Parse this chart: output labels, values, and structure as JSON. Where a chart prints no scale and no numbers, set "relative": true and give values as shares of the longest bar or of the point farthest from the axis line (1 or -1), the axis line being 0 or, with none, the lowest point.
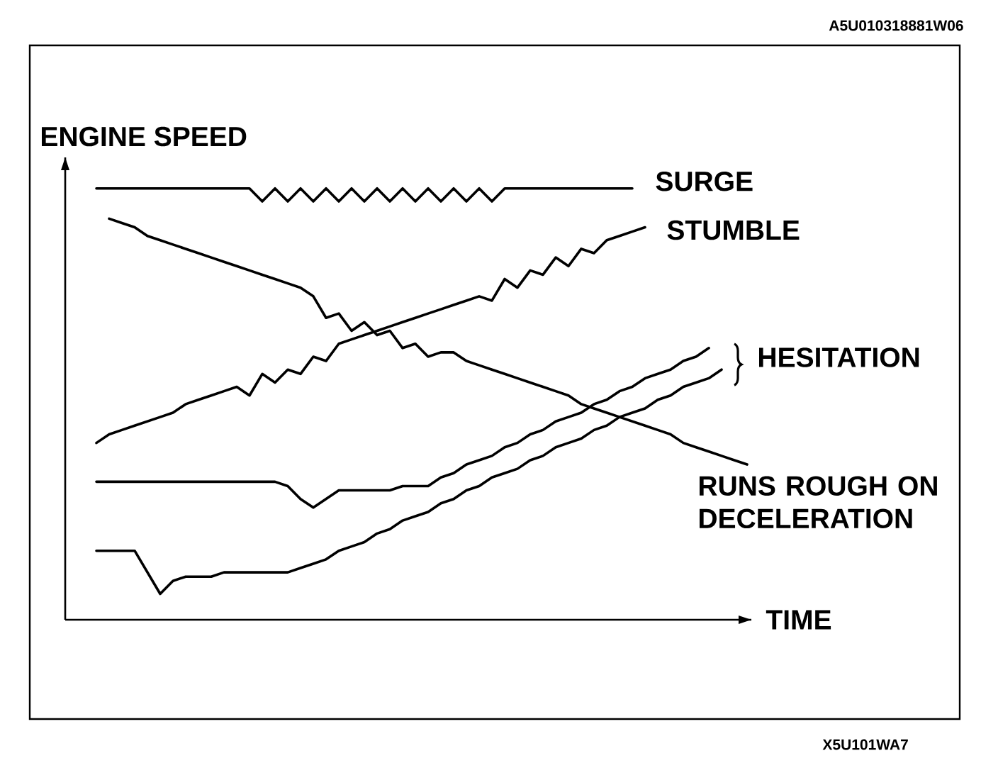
{
  "chart_data": {
    "type": "line",
    "relative": true,
    "xlabel": "TIME",
    "ylabel": "ENGINE SPEED",
    "categories": [
      null,
      null,
      null,
      null,
      null,
      null,
      null,
      null,
      null,
      null,
      null,
      null,
      null,
      null,
      null,
      null,
      null,
      null,
      null,
      null,
      null,
      null,
      null,
      null,
      null,
      null,
      null,
      null,
      null,
      null,
      null,
      null,
      null,
      null,
      null,
      null,
      null,
      null,
      null,
      null,
      null,
      null,
      null,
      null,
      null,
      null,
      null,
      null,
      null,
      null,
      null,
      null
    ],
    "series": [
      {
        "name": "SURGE",
        "color": "#000000",
        "values": [
          1,
          1,
          1,
          1,
          1,
          1,
          1,
          1,
          1,
          1,
          1,
          1,
          1,
          0.97,
          1,
          0.97,
          1,
          0.97,
          1,
          0.97,
          1,
          0.97,
          1,
          0.97,
          1,
          0.97,
          1,
          0.97,
          1,
          0.97,
          1,
          0.97,
          1,
          1,
          1,
          1,
          1,
          1,
          1,
          1,
          1,
          1,
          1,
          null,
          null,
          null,
          null,
          null,
          null,
          null,
          null,
          null
        ]
      },
      {
        "name": "STUMBLE",
        "color": "#000000",
        "values": [
          0.41,
          0.43,
          0.44,
          0.45,
          0.46,
          0.47,
          0.48,
          0.5,
          0.51,
          0.52,
          0.53,
          0.54,
          0.52,
          0.57,
          0.55,
          0.58,
          0.57,
          0.61,
          0.6,
          0.64,
          0.65,
          0.66,
          0.67,
          0.68,
          0.69,
          0.7,
          0.71,
          0.72,
          0.73,
          0.74,
          0.75,
          0.74,
          0.79,
          0.77,
          0.81,
          0.8,
          0.84,
          0.82,
          0.86,
          0.85,
          0.88,
          0.89,
          0.9,
          0.91,
          null,
          null,
          null,
          null,
          null,
          null,
          null,
          null
        ]
      },
      {
        "name": "HESITATION",
        "color": "#000000",
        "values": [
          0.32,
          0.32,
          0.32,
          0.32,
          0.32,
          0.32,
          0.32,
          0.32,
          0.32,
          0.32,
          0.32,
          0.32,
          0.32,
          0.32,
          0.32,
          0.31,
          0.28,
          0.26,
          0.28,
          0.3,
          0.3,
          0.3,
          0.3,
          0.3,
          0.31,
          0.31,
          0.31,
          0.33,
          0.34,
          0.36,
          0.37,
          0.38,
          0.4,
          0.41,
          0.43,
          0.44,
          0.46,
          0.47,
          0.48,
          0.5,
          0.51,
          0.53,
          0.54,
          0.56,
          0.57,
          0.58,
          0.6,
          0.61,
          0.63,
          null,
          null,
          null
        ]
      },
      {
        "color": "#000000",
        "values": [
          0.16,
          0.16,
          0.16,
          0.16,
          0.11,
          0.06,
          0.09,
          0.1,
          0.1,
          0.1,
          0.11,
          0.11,
          0.11,
          0.11,
          0.11,
          0.11,
          0.12,
          0.13,
          0.14,
          0.16,
          0.17,
          0.18,
          0.2,
          0.21,
          0.23,
          0.24,
          0.25,
          0.27,
          0.28,
          0.3,
          0.31,
          0.33,
          0.34,
          0.35,
          0.37,
          0.38,
          0.4,
          0.41,
          0.42,
          0.44,
          0.45,
          0.47,
          0.48,
          0.49,
          0.51,
          0.52,
          0.54,
          0.55,
          0.56,
          0.58,
          null,
          null
        ]
      },
      {
        "name": "RUNS ROUGH ON DECELERATION",
        "color": "#000000",
        "values": [
          null,
          0.93,
          0.92,
          0.91,
          0.89,
          0.88,
          0.87,
          0.86,
          0.85,
          0.84,
          0.83,
          0.82,
          0.81,
          0.8,
          0.79,
          0.78,
          0.77,
          0.75,
          0.7,
          0.71,
          0.67,
          0.69,
          0.66,
          0.67,
          0.63,
          0.64,
          0.61,
          0.62,
          0.62,
          0.6,
          0.59,
          0.58,
          0.57,
          0.56,
          0.55,
          0.54,
          0.53,
          0.52,
          0.5,
          0.49,
          0.48,
          0.47,
          0.46,
          0.45,
          0.44,
          0.43,
          0.41,
          0.4,
          0.39,
          0.38,
          0.37,
          0.36
        ]
      }
    ],
    "annotations": [
      "A5U010318881W06",
      "X5U101WA7"
    ]
  }
}
